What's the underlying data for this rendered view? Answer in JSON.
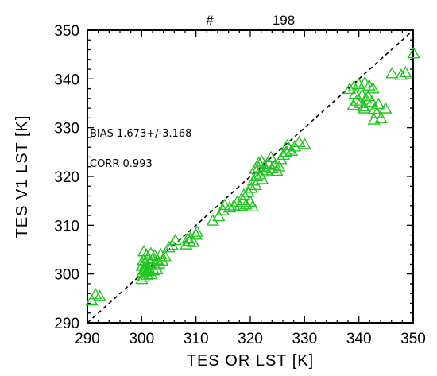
{
  "chart_data": {
    "type": "scatter",
    "top_label_hash": "#",
    "top_label_count": "198",
    "xlabel": "TES OR LST [K]",
    "ylabel": "TES V1 LST [K]",
    "xlim": [
      290,
      350
    ],
    "ylim": [
      290,
      350
    ],
    "xticks": [
      "290",
      "300",
      "310",
      "320",
      "330",
      "340",
      "350"
    ],
    "yticks": [
      "290",
      "300",
      "310",
      "320",
      "330",
      "340",
      "350"
    ],
    "annotations": {
      "bias": "BIAS 1.673+/-3.168",
      "corr": "CORR 0.993"
    },
    "reference_line": "1:1",
    "marker": "triangle-open",
    "marker_color": "#22c322",
    "points": [
      [
        290.8,
        294.5
      ],
      [
        292.3,
        295.4
      ],
      [
        291.5,
        295.8
      ],
      [
        300.0,
        298.9
      ],
      [
        300.4,
        299.4
      ],
      [
        301.0,
        299.8
      ],
      [
        301.8,
        299.9
      ],
      [
        300.2,
        300.4
      ],
      [
        300.6,
        300.8
      ],
      [
        301.3,
        301.1
      ],
      [
        302.2,
        300.7
      ],
      [
        300.1,
        301.6
      ],
      [
        300.8,
        302.0
      ],
      [
        301.5,
        302.3
      ],
      [
        302.6,
        301.8
      ],
      [
        303.2,
        302.1
      ],
      [
        300.3,
        302.8
      ],
      [
        301.1,
        303.2
      ],
      [
        302.0,
        303.0
      ],
      [
        302.9,
        302.9
      ],
      [
        303.8,
        302.7
      ],
      [
        300.9,
        303.9
      ],
      [
        301.7,
        304.2
      ],
      [
        300.4,
        304.6
      ],
      [
        302.4,
        303.8
      ],
      [
        304.3,
        303.6
      ],
      [
        303.5,
        304.0
      ],
      [
        301.2,
        300.5
      ],
      [
        302.8,
        300.9
      ],
      [
        300.7,
        301.3
      ],
      [
        305.0,
        305.4
      ],
      [
        306.2,
        306.9
      ],
      [
        305.6,
        305.9
      ],
      [
        308.2,
        306.0
      ],
      [
        308.8,
        306.7
      ],
      [
        309.5,
        306.5
      ],
      [
        309.0,
        307.4
      ],
      [
        308.5,
        307.2
      ],
      [
        310.0,
        308.0
      ],
      [
        310.2,
        308.6
      ],
      [
        313.1,
        310.9
      ],
      [
        314.2,
        311.8
      ],
      [
        315.0,
        313.0
      ],
      [
        315.3,
        314.1
      ],
      [
        316.2,
        313.6
      ],
      [
        317.0,
        314.0
      ],
      [
        317.6,
        314.8
      ],
      [
        318.1,
        313.9
      ],
      [
        318.6,
        315.1
      ],
      [
        319.2,
        314.2
      ],
      [
        320.0,
        314.8
      ],
      [
        320.4,
        313.8
      ],
      [
        318.8,
        316.2
      ],
      [
        319.6,
        316.8
      ],
      [
        320.2,
        317.6
      ],
      [
        321.0,
        318.2
      ],
      [
        320.6,
        319.1
      ],
      [
        321.2,
        320.0
      ],
      [
        321.8,
        320.4
      ],
      [
        322.3,
        320.9
      ],
      [
        323.0,
        321.2
      ],
      [
        322.6,
        322.0
      ],
      [
        321.5,
        321.8
      ],
      [
        323.4,
        322.6
      ],
      [
        324.0,
        321.6
      ],
      [
        324.6,
        322.3
      ],
      [
        325.3,
        322.0
      ],
      [
        324.9,
        321.1
      ],
      [
        322.2,
        319.4
      ],
      [
        321.6,
        322.8
      ],
      [
        322.1,
        323.1
      ],
      [
        325.6,
        323.5
      ],
      [
        326.1,
        324.4
      ],
      [
        326.6,
        325.0
      ],
      [
        327.2,
        325.6
      ],
      [
        326.8,
        326.3
      ],
      [
        328.2,
        326.1
      ],
      [
        329.0,
        327.0
      ],
      [
        330.0,
        326.6
      ],
      [
        327.6,
        325.2
      ],
      [
        323.8,
        323.9
      ],
      [
        320.9,
        321.5
      ],
      [
        338.3,
        337.9
      ],
      [
        339.1,
        338.4
      ],
      [
        340.0,
        338.9
      ],
      [
        341.1,
        339.2
      ],
      [
        341.9,
        338.6
      ],
      [
        342.6,
        338.0
      ],
      [
        339.3,
        336.9
      ],
      [
        339.6,
        335.5
      ],
      [
        340.2,
        335.0
      ],
      [
        340.9,
        334.3
      ],
      [
        341.3,
        335.9
      ],
      [
        341.7,
        336.4
      ],
      [
        342.4,
        335.3
      ],
      [
        342.9,
        333.8
      ],
      [
        343.3,
        332.9
      ],
      [
        344.1,
        331.9
      ],
      [
        342.8,
        331.6
      ],
      [
        343.6,
        334.8
      ],
      [
        344.9,
        333.9
      ],
      [
        339.0,
        334.6
      ],
      [
        340.6,
        336.7
      ],
      [
        341.0,
        333.9
      ],
      [
        346.1,
        341.1
      ],
      [
        347.8,
        340.8
      ],
      [
        348.6,
        341.3
      ],
      [
        350.1,
        345.2
      ]
    ]
  }
}
